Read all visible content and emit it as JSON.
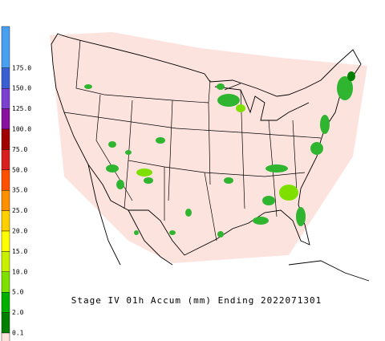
{
  "title": "Stage IV 01h Accum (mm) Ending 2022071301",
  "legend": {
    "labels": [
      "175.0",
      "150.0",
      "125.0",
      "100.0",
      "75.0",
      "50.0",
      "35.0",
      "25.0",
      "20.0",
      "15.0",
      "10.0",
      "5.0",
      "2.0",
      "0.1"
    ],
    "colors": [
      "#4aa0f0",
      "#3a5fd0",
      "#7a40d0",
      "#8a10a0",
      "#a00000",
      "#d82020",
      "#ff5000",
      "#ff9000",
      "#ffd000",
      "#ffff00",
      "#c8f000",
      "#7fe000",
      "#00b000",
      "#007f00",
      "#fde3de"
    ]
  }
}
